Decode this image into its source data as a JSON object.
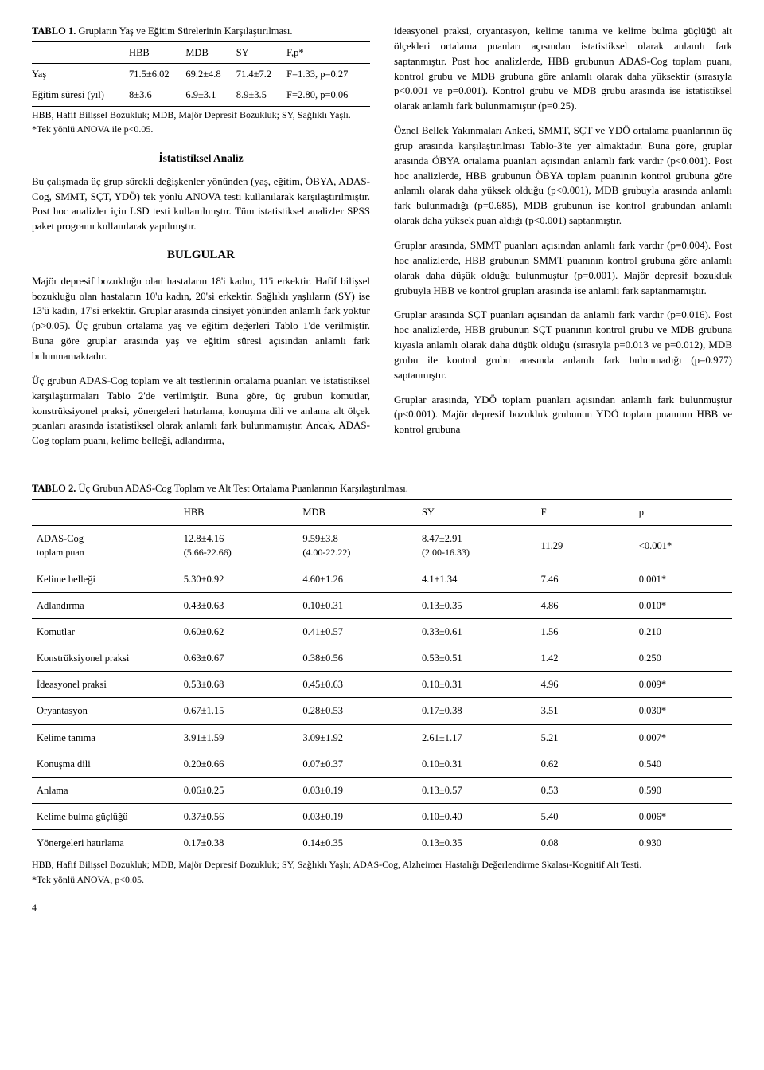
{
  "table1": {
    "title_label": "TABLO 1.",
    "title_text": "Grupların Yaş ve Eğitim Sürelerinin Karşılaştırılması.",
    "columns": [
      "",
      "HBB",
      "MDB",
      "SY",
      "F,p*"
    ],
    "rows": [
      [
        "Yaş",
        "71.5±6.02",
        "69.2±4.8",
        "71.4±7.2",
        "F=1.33, p=0.27"
      ],
      [
        "Eğitim süresi (yıl)",
        "8±3.6",
        "6.9±3.1",
        "8.9±3.5",
        "F=2.80, p=0.06"
      ]
    ],
    "footnote1": "HBB, Hafif Bilişsel Bozukluk; MDB, Majör Depresif Bozukluk; SY, Sağlıklı Yaşlı.",
    "footnote2": "*Tek yönlü ANOVA ile p<0.05."
  },
  "left": {
    "stat_head": "İstatistiksel Analiz",
    "p1": "Bu çalışmada üç grup sürekli değişkenler yönünden (yaş, eğitim, ÖBYA, ADAS-Cog, SMMT, SÇT, YDÖ) tek yönlü ANOVA testi kullanılarak karşılaştırılmıştır. Post hoc analizler için LSD testi kullanılmıştır. Tüm istatistiksel analizler SPSS paket programı kullanılarak yapılmıştır.",
    "bulgular_head": "BULGULAR",
    "p2": "Majör depresif bozukluğu olan hastaların 18'i kadın, 11'i erkektir. Hafif bilişsel bozukluğu olan hastaların 10'u kadın, 20'si erkektir. Sağlıklı yaşlıların (SY) ise 13'ü kadın, 17'si erkektir. Gruplar arasında cinsiyet yönünden anlamlı fark yoktur (p>0.05). Üç grubun ortalama yaş ve eğitim değerleri Tablo 1'de verilmiştir. Buna göre gruplar arasında yaş ve eğitim süresi açısından anlamlı fark bulunmamaktadır.",
    "p3": "Üç grubun ADAS-Cog toplam ve alt testlerinin ortalama puanları ve istatistiksel karşılaştırmaları Tablo 2'de verilmiştir. Buna göre, üç grubun komutlar, konstrüksiyonel praksi, yönergeleri hatırlama, konuşma dili ve anlama alt ölçek puanları arasında istatistiksel olarak anlamlı fark bulunmamıştır. Ancak, ADAS-Cog toplam puanı, kelime belleği, adlandırma,"
  },
  "right": {
    "p1": "ideasyonel praksi, oryantasyon, kelime tanıma ve kelime bulma güçlüğü alt ölçekleri ortalama puanları açısından istatistiksel olarak anlamlı fark saptanmıştır. Post hoc analizlerde, HBB grubunun ADAS-Cog toplam puanı, kontrol grubu ve MDB grubuna göre anlamlı olarak daha yüksektir (sırasıyla p<0.001 ve p=0.001). Kontrol grubu ve MDB grubu arasında ise istatistiksel olarak anlamlı fark bulunmamıştır (p=0.25).",
    "p2": "Öznel Bellek Yakınmaları Anketi, SMMT, SÇT ve YDÖ ortalama puanlarının üç grup arasında karşılaştırılması Tablo-3'te yer almaktadır. Buna göre, gruplar arasında ÖBYA ortalama puanları açısından anlamlı fark vardır (p<0.001). Post hoc analizlerde, HBB grubunun ÖBYA toplam puanının kontrol grubuna göre anlamlı olarak daha yüksek olduğu (p<0.001), MDB grubuyla arasında anlamlı fark bulunmadığı (p=0.685), MDB grubunun ise kontrol grubundan anlamlı olarak daha yüksek puan aldığı (p<0.001) saptanmıştır.",
    "p3": "Gruplar arasında, SMMT puanları açısından anlamlı fark vardır (p=0.004). Post hoc analizlerde, HBB grubunun SMMT puanının kontrol grubuna göre anlamlı olarak daha düşük olduğu bulunmuştur (p=0.001). Majör depresif bozukluk grubuyla HBB ve kontrol grupları arasında ise anlamlı fark saptanmamıştır.",
    "p4": "Gruplar arasında SÇT puanları açısından da anlamlı fark vardır (p=0.016). Post hoc analizlerde, HBB grubunun SÇT puanının kontrol grubu ve MDB grubuna kıyasla anlamlı olarak daha düşük olduğu (sırasıyla p=0.013 ve p=0.012), MDB grubu ile kontrol grubu arasında anlamlı fark bulunmadığı (p=0.977) saptanmıştır.",
    "p5": "Gruplar arasında, YDÖ toplam puanları açısından anlamlı fark bulunmuştur (p<0.001). Majör depresif bozukluk grubunun YDÖ toplam puanının HBB ve kontrol grubuna"
  },
  "table2": {
    "title_label": "TABLO 2.",
    "title_text": "Üç Grubun ADAS-Cog Toplam ve Alt Test Ortalama Puanlarının Karşılaştırılması.",
    "columns": [
      "",
      "HBB",
      "MDB",
      "SY",
      "F",
      "p"
    ],
    "rows": [
      {
        "label": "ADAS-Cog\ntoplam puan",
        "hbb": "12.8±4.16\n(5.66-22.66)",
        "mdb": "9.59±3.8\n(4.00-22.22)",
        "sy": "8.47±2.91\n(2.00-16.33)",
        "f": "11.29",
        "p": "<0.001*"
      },
      {
        "label": "Kelime belleği",
        "hbb": "5.30±0.92",
        "mdb": "4.60±1.26",
        "sy": "4.1±1.34",
        "f": "7.46",
        "p": "0.001*"
      },
      {
        "label": "Adlandırma",
        "hbb": "0.43±0.63",
        "mdb": "0.10±0.31",
        "sy": "0.13±0.35",
        "f": "4.86",
        "p": "0.010*"
      },
      {
        "label": "Komutlar",
        "hbb": "0.60±0.62",
        "mdb": "0.41±0.57",
        "sy": "0.33±0.61",
        "f": "1.56",
        "p": "0.210"
      },
      {
        "label": "Konstrüksiyonel praksi",
        "hbb": "0.63±0.67",
        "mdb": "0.38±0.56",
        "sy": "0.53±0.51",
        "f": "1.42",
        "p": "0.250"
      },
      {
        "label": "İdeasyonel praksi",
        "hbb": "0.53±0.68",
        "mdb": "0.45±0.63",
        "sy": "0.10±0.31",
        "f": "4.96",
        "p": "0.009*"
      },
      {
        "label": "Oryantasyon",
        "hbb": "0.67±1.15",
        "mdb": "0.28±0.53",
        "sy": "0.17±0.38",
        "f": "3.51",
        "p": "0.030*"
      },
      {
        "label": "Kelime tanıma",
        "hbb": "3.91±1.59",
        "mdb": "3.09±1.92",
        "sy": "2.61±1.17",
        "f": "5.21",
        "p": "0.007*"
      },
      {
        "label": "Konuşma dili",
        "hbb": "0.20±0.66",
        "mdb": "0.07±0.37",
        "sy": "0.10±0.31",
        "f": "0.62",
        "p": "0.540"
      },
      {
        "label": "Anlama",
        "hbb": "0.06±0.25",
        "mdb": "0.03±0.19",
        "sy": "0.13±0.57",
        "f": "0.53",
        "p": "0.590"
      },
      {
        "label": "Kelime bulma güçlüğü",
        "hbb": "0.37±0.56",
        "mdb": "0.03±0.19",
        "sy": "0.10±0.40",
        "f": "5.40",
        "p": "0.006*"
      },
      {
        "label": "Yönergeleri hatırlama",
        "hbb": "0.17±0.38",
        "mdb": "0.14±0.35",
        "sy": "0.13±0.35",
        "f": "0.08",
        "p": "0.930"
      }
    ],
    "footnote1": "HBB, Hafif Bilişsel Bozukluk; MDB, Majör Depresif Bozukluk; SY, Sağlıklı Yaşlı; ADAS-Cog, Alzheimer Hastalığı Değerlendirme Skalası-Kognitif Alt Testi.",
    "footnote2": "*Tek yönlü ANOVA, p<0.05."
  },
  "page_number": "4"
}
